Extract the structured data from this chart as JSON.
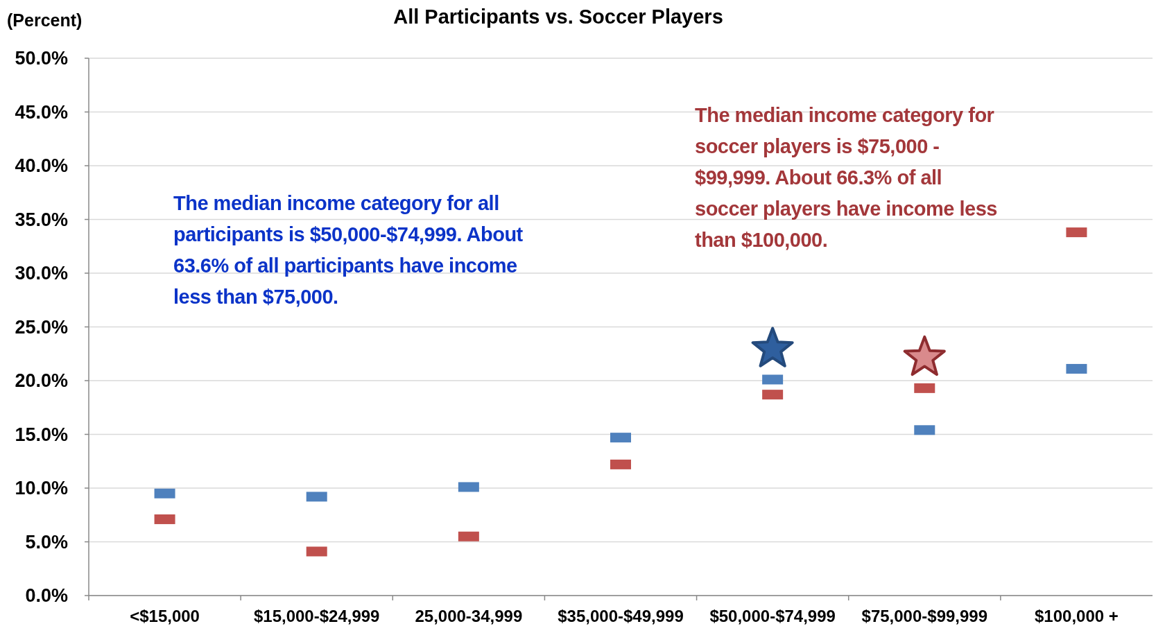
{
  "chart_data": {
    "type": "scatter",
    "title": "All Participants vs. Soccer Players",
    "ylabel": "(Percent)",
    "categories": [
      "<$15,000",
      "$15,000-$24,999",
      "25,000-34,999",
      "$35,000-$49,999",
      "$50,000-$74,999",
      "$75,000-$99,999",
      "$100,000 +"
    ],
    "series": [
      {
        "color": "#4f81bd",
        "values": [
          9.5,
          9.2,
          10.1,
          14.7,
          20.1,
          15.4,
          21.1
        ]
      },
      {
        "color": "#c0504d",
        "values": [
          7.1,
          4.1,
          5.5,
          12.2,
          18.7,
          19.3,
          33.8
        ]
      }
    ],
    "ylim": [
      0,
      50
    ],
    "yticks": [
      {
        "value": 0,
        "label": "0.0%"
      },
      {
        "value": 5,
        "label": "5.0%"
      },
      {
        "value": 10,
        "label": "10.0%"
      },
      {
        "value": 15,
        "label": "15.0%"
      },
      {
        "value": 20,
        "label": "20.0%"
      },
      {
        "value": 25,
        "label": "25.0%"
      },
      {
        "value": 30,
        "label": "30.0%"
      },
      {
        "value": 35,
        "label": "35.0%"
      },
      {
        "value": 40,
        "label": "40.0%"
      },
      {
        "value": 45,
        "label": "45.0%"
      },
      {
        "value": 50,
        "label": "50.0%"
      }
    ],
    "grid": "y",
    "marker": "square",
    "annotations": [
      "The median income category for all participants is $50,000-$74,999.  About 63.6% of all participants have income less than $75,000.",
      "The median income category for soccer players is $75,000 - $99,999.  About 66.3% of all soccer players have income less than $100,000."
    ]
  }
}
